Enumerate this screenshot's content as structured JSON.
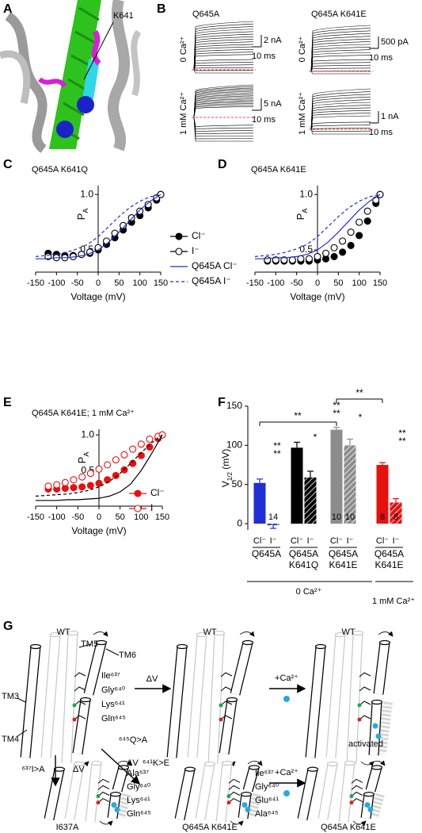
{
  "panel_labels": [
    "A",
    "B",
    "C",
    "D",
    "E",
    "F",
    "G"
  ],
  "panel_a": {
    "label": "K641"
  },
  "panel_b": {
    "columns": [
      "Q645A",
      "Q645A K641E"
    ],
    "rows": [
      "0 Ca²⁺",
      "1 mM Ca²⁺"
    ],
    "scale_bars": [
      [
        "2 nA",
        "10 ms"
      ],
      [
        "500 pA",
        "10 ms"
      ],
      [
        "5 nA",
        "10 ms"
      ],
      [
        "1 nA",
        "10 ms"
      ]
    ]
  },
  "chart_data": [
    {
      "type": "line",
      "title": "Q645A K641Q",
      "xlabel": "Voltage (mV)",
      "ylabel": [
        "P",
        "A"
      ],
      "xlim": [
        -150,
        150
      ],
      "ylim": [
        0.3,
        1.08
      ],
      "xticks": [
        -150,
        -100,
        -50,
        0,
        50,
        100,
        150
      ],
      "yticks": [
        0.5,
        {
          "value": 1.0,
          "label": "1.0"
        }
      ],
      "legend": "right",
      "series": [
        {
          "name": "Cl⁻",
          "color": "#000000",
          "marker": "filled",
          "x": [
            -120,
            -100,
            -80,
            -60,
            -40,
            -20,
            0,
            20,
            40,
            60,
            80,
            100,
            120,
            140,
            150
          ],
          "values": [
            0.47,
            0.46,
            0.45,
            0.45,
            0.46,
            0.47,
            0.5,
            0.55,
            0.61,
            0.68,
            0.75,
            0.81,
            0.88,
            0.95,
            1.0
          ],
          "errors": [
            0.03,
            0.03,
            0.03,
            0.03,
            0.02,
            0.02,
            0.02,
            0.02,
            0.02,
            0.02,
            0.02,
            0.02,
            0.02,
            0.01,
            0
          ]
        },
        {
          "name": "I⁻",
          "color": "#000000",
          "marker": "open",
          "x": [
            -120,
            -100,
            -80,
            -60,
            -40,
            -20,
            0,
            20,
            40,
            60,
            80,
            100,
            120,
            140,
            150
          ],
          "values": [
            0.44,
            0.43,
            0.43,
            0.44,
            0.46,
            0.48,
            0.52,
            0.58,
            0.65,
            0.72,
            0.79,
            0.85,
            0.91,
            0.97,
            1.0
          ],
          "errors": [
            0.03,
            0.03,
            0.03,
            0.03,
            0.03,
            0.02,
            0.02,
            0.02,
            0.02,
            0.02,
            0.02,
            0.02,
            0.02,
            0.01,
            0
          ]
        },
        {
          "name": "Q645A Cl⁻",
          "color": "#1f2fd6",
          "style": "solid",
          "x": [
            -150,
            -125,
            -100,
            -75,
            -50,
            -25,
            0,
            25,
            50,
            75,
            100,
            125,
            150
          ],
          "values": [
            0.42,
            0.42,
            0.43,
            0.43,
            0.44,
            0.46,
            0.5,
            0.57,
            0.66,
            0.76,
            0.86,
            0.94,
            1.0
          ]
        },
        {
          "name": "Q645A I⁻",
          "color": "#1f2fd6",
          "style": "dashed",
          "x": [
            -150,
            -125,
            -100,
            -75,
            -50,
            -25,
            0,
            25,
            50,
            75,
            100,
            125,
            150
          ],
          "values": [
            0.44,
            0.45,
            0.46,
            0.48,
            0.51,
            0.55,
            0.62,
            0.71,
            0.8,
            0.88,
            0.94,
            0.98,
            1.0
          ]
        }
      ]
    },
    {
      "type": "line",
      "title": "Q645A K641E",
      "xlabel": "Voltage (mV)",
      "ylabel": [
        "P",
        "A"
      ],
      "xlim": [
        -150,
        150
      ],
      "ylim": [
        0.3,
        1.08
      ],
      "xticks": [
        -150,
        -100,
        -50,
        0,
        50,
        100,
        150
      ],
      "yticks": [
        0.5,
        {
          "value": 1.0,
          "label": "1.0"
        }
      ],
      "series": [
        {
          "color": "#000000",
          "marker": "filled",
          "x": [
            -120,
            -100,
            -80,
            -60,
            -40,
            -20,
            0,
            20,
            40,
            60,
            80,
            100,
            120,
            140,
            150
          ],
          "values": [
            0.4,
            0.4,
            0.4,
            0.4,
            0.4,
            0.4,
            0.41,
            0.42,
            0.44,
            0.48,
            0.54,
            0.63,
            0.76,
            0.92,
            1.0
          ],
          "errors": [
            0.02,
            0.02,
            0.02,
            0.02,
            0.01,
            0.01,
            0.01,
            0.01,
            0.01,
            0.01,
            0.02,
            0.02,
            0.02,
            0.01,
            0
          ]
        },
        {
          "color": "#000000",
          "marker": "open",
          "x": [
            -120,
            -100,
            -80,
            -60,
            -40,
            -20,
            0,
            20,
            40,
            60,
            80,
            100,
            120,
            140,
            150
          ],
          "values": [
            0.41,
            0.41,
            0.41,
            0.41,
            0.42,
            0.42,
            0.44,
            0.47,
            0.52,
            0.58,
            0.66,
            0.75,
            0.85,
            0.95,
            1.0
          ],
          "errors": [
            0.02,
            0.02,
            0.02,
            0.02,
            0.01,
            0.01,
            0.01,
            0.02,
            0.02,
            0.02,
            0.02,
            0.02,
            0.02,
            0.01,
            0
          ]
        },
        {
          "color": "#1f2fd6",
          "style": "solid",
          "x": [
            -150,
            -125,
            -100,
            -75,
            -50,
            -25,
            0,
            25,
            50,
            75,
            100,
            125,
            150
          ],
          "values": [
            0.42,
            0.42,
            0.43,
            0.43,
            0.44,
            0.46,
            0.5,
            0.57,
            0.66,
            0.76,
            0.86,
            0.94,
            1.0
          ]
        },
        {
          "color": "#1f2fd6",
          "style": "dashed",
          "x": [
            -150,
            -125,
            -100,
            -75,
            -50,
            -25,
            0,
            25,
            50,
            75,
            100,
            125,
            150
          ],
          "values": [
            0.44,
            0.45,
            0.46,
            0.48,
            0.51,
            0.55,
            0.62,
            0.71,
            0.8,
            0.88,
            0.94,
            0.98,
            1.0
          ]
        }
      ]
    },
    {
      "type": "line",
      "title": "Q645A K641E; 1 mM Ca²⁺",
      "xlabel": "Voltage (mV)",
      "ylabel": [
        "P",
        "A"
      ],
      "xlim": [
        -150,
        150
      ],
      "ylim": [
        0,
        1.08
      ],
      "xticks": [
        -150,
        -100,
        -50,
        0,
        50,
        100,
        150
      ],
      "yticks": [
        0.5,
        {
          "value": 1.0,
          "label": "1.0"
        }
      ],
      "legend": "lower right",
      "series": [
        {
          "name": "Cl⁻",
          "color": "#e8100f",
          "marker": "filled",
          "x": [
            -120,
            -100,
            -80,
            -60,
            -40,
            -20,
            0,
            20,
            40,
            60,
            80,
            100,
            120,
            140,
            150
          ],
          "values": [
            0.24,
            0.24,
            0.25,
            0.26,
            0.27,
            0.29,
            0.32,
            0.37,
            0.43,
            0.51,
            0.6,
            0.71,
            0.83,
            0.95,
            1.0
          ]
        },
        {
          "name": "I⁻",
          "color": "#e8100f",
          "marker": "open",
          "x": [
            -120,
            -100,
            -80,
            -60,
            -40,
            -20,
            0,
            20,
            40,
            60,
            80,
            100,
            120,
            140,
            150
          ],
          "values": [
            0.28,
            0.3,
            0.33,
            0.37,
            0.41,
            0.46,
            0.52,
            0.58,
            0.65,
            0.72,
            0.8,
            0.87,
            0.94,
            0.98,
            1.0
          ]
        },
        {
          "color": "#000000",
          "style": "solid",
          "x": [
            -150,
            -125,
            -100,
            -75,
            -50,
            -25,
            0,
            25,
            50,
            75,
            100,
            125,
            150
          ],
          "values": [
            0.08,
            0.08,
            0.08,
            0.09,
            0.09,
            0.1,
            0.11,
            0.14,
            0.2,
            0.31,
            0.5,
            0.74,
            1.0
          ]
        },
        {
          "color": "#000000",
          "style": "dashed",
          "x": [
            -150,
            -125,
            -100,
            -75,
            -50,
            -25,
            0,
            25,
            50,
            75,
            100,
            125,
            150
          ],
          "values": [
            0.14,
            0.15,
            0.16,
            0.17,
            0.19,
            0.22,
            0.27,
            0.35,
            0.46,
            0.6,
            0.75,
            0.89,
            1.0
          ]
        }
      ]
    },
    {
      "type": "bar",
      "ylabel": [
        "V",
        "1/2",
        " (mV)"
      ],
      "ylim": [
        -8,
        150
      ],
      "yticks": [
        0,
        50,
        100,
        150
      ],
      "categories": [
        "Cl⁻",
        "I⁻",
        "Cl⁻",
        "I⁻",
        "Cl⁻",
        "I⁻",
        "Cl⁻",
        "I⁻"
      ],
      "values": [
        52,
        -2,
        97,
        59,
        120,
        100,
        75,
        27
      ],
      "errors": [
        5,
        4,
        7,
        8,
        3,
        8,
        3,
        5
      ],
      "colors": [
        "#1f2fd6",
        "#1f2fd6",
        "#000000",
        "#000000",
        "#8c8c8c",
        "#8c8c8c",
        "#e8100f",
        "#e8100f"
      ],
      "hatched": [
        false,
        true,
        false,
        true,
        false,
        true,
        false,
        true
      ],
      "n_labels": [
        null,
        "14",
        null,
        null,
        "10",
        "10",
        "8",
        "8"
      ],
      "groups": [
        [
          "Q645A"
        ],
        [
          "Q645A",
          "K641Q"
        ],
        [
          "Q645A",
          "K641E"
        ],
        [
          "Q645A",
          "K641E"
        ]
      ],
      "conditions": [
        "0 Ca²⁺",
        "1 mM Ca²⁺"
      ],
      "significance": [
        "**",
        "**",
        "**",
        "**",
        "*",
        "*",
        "**",
        "**",
        "**",
        "**"
      ]
    }
  ],
  "panel_g": {
    "texts": [
      "WT",
      "TM5",
      "TM6",
      "TM3",
      "TM4",
      "Ile⁶³⁷",
      "Gly⁶⁴⁰",
      "Lys⁶⁴¹",
      "Gln⁶⁴⁵",
      "ΔV",
      "WT",
      "+Ca²⁺",
      "WT",
      "activated",
      "⁶³⁷I>A",
      "ΔV",
      "⁶⁴⁵Q>A",
      "ΔV",
      "⁶⁴¹K>E",
      "Ala⁶³⁷",
      "Gly⁶⁴⁰",
      "Lys⁶⁴¹",
      "Gln⁶⁴⁵",
      "I637A",
      "Ile⁶³⁷",
      "Gly⁶⁴⁰",
      "Glu⁶⁴¹",
      "Ala⁶⁴⁵",
      "Q645A K641E",
      "+Ca²⁺",
      "Q645A K641E"
    ]
  }
}
